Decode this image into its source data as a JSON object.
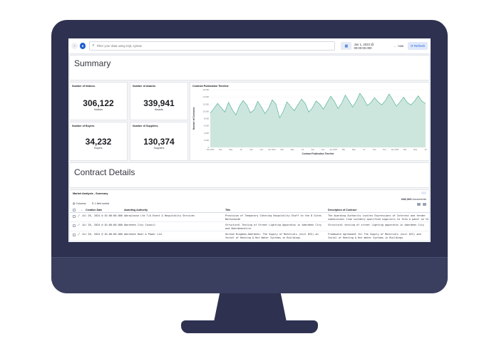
{
  "query_bar": {
    "search_placeholder": "Filter your data using KQL syntax",
    "date_start": "Jan 1, 2023 @ 00:00:00.000",
    "arrow": "→",
    "date_end": "now",
    "refresh_label": "Refresh"
  },
  "summary": {
    "title": "Summary"
  },
  "metrics": [
    {
      "title": "Number of Notices.",
      "value": "306,122",
      "label": "Notices"
    },
    {
      "title": "Number of Awards.",
      "value": "339,941",
      "label": "Awards"
    },
    {
      "title": "Number of Buyers.",
      "value": "34,232",
      "label": "Buyers"
    },
    {
      "title": "Number of Suppliers.",
      "value": "130,374",
      "label": "Suppliers"
    }
  ],
  "chart_data": {
    "type": "area",
    "title": "Contract Publication Timeline",
    "ylabel": "Number of Contracts",
    "xlabel": "Contract Publication Timeline",
    "ylim": [
      0,
      16000
    ],
    "yticks": [
      "0",
      "2,000",
      "4,000",
      "6,000",
      "8,000",
      "10,000",
      "12,000",
      "14,000",
      "16,000"
    ],
    "xticks": [
      "Jan 2023",
      "Mar",
      "May",
      "Jul",
      "Sep",
      "Nov",
      "Jan 2024",
      "Mar",
      "May",
      "Jul",
      "Sep",
      "Nov",
      "Jan 2025",
      "Mar",
      "May",
      "Jul",
      "Sep",
      "Nov",
      "Jan 2026",
      "Mar",
      "May",
      "Jul"
    ],
    "values": [
      9500,
      10800,
      12200,
      11000,
      9800,
      12500,
      10500,
      9000,
      11500,
      13000,
      11800,
      9600,
      10400,
      12800,
      11200,
      9400,
      10900,
      13200,
      12000,
      8200,
      10000,
      12600,
      11400,
      10200,
      11800,
      13400,
      12200,
      9800,
      11000,
      12900,
      12000,
      10600,
      12400,
      14200,
      12800,
      10800,
      12200,
      14500,
      12900,
      11200,
      12800,
      15000,
      13600,
      11600,
      12400,
      13800,
      12600,
      11800,
      13000,
      14800,
      13200,
      11400,
      12600,
      13900,
      12400,
      11800,
      12900,
      14300,
      12800,
      12200
    ]
  },
  "contract_details": {
    "title": "Contract Details"
  },
  "table": {
    "title": "Market Analysis - Summary",
    "count": "648,063",
    "count_suffix": "documents",
    "toolbar": [
      "Columns",
      "1 field sorted"
    ],
    "columns": [
      "Creation Date",
      "Awarding Authority",
      "Title",
      "Description of Contract"
    ],
    "rows": [
      {
        "date": "Jul 28, 2024 @ 01:00:00.000",
        "authority": "Aberglasse Ltd T/A Event & Hospitality Services",
        "title": "Provision of Temporary Catering Hospitality Staff to the 8 Sites Nationwide",
        "description": "The Awarding Authority invites Expressions of Interest and tender submissions from suitably qualified suppliers to form a panel on th"
      },
      {
        "date": "Jul 28, 2024 @ 01:00:00.000",
        "authority": "Aberdeen City Council",
        "title": "Structural Testing of Street Lighting Apparatus in Aberdeen City and Aberdeenshire.",
        "description": "Structural testing of street lighting apparatus in Aberdeen City"
      },
      {
        "date": "Jul 28, 2024 @ 01:00:00.000",
        "authority": "Aberdeen Heat & Power Ltd",
        "title": "United Kingdom-Aberdeen: The Supply of Materials (excl DIS) an Instal of Heating & Hot Water Systems in Buildings",
        "description": "Framework Agreement for The Supply of Materials (excl DIS) and Instal of Heating & Hot Water Systems in Buildings"
      }
    ]
  }
}
